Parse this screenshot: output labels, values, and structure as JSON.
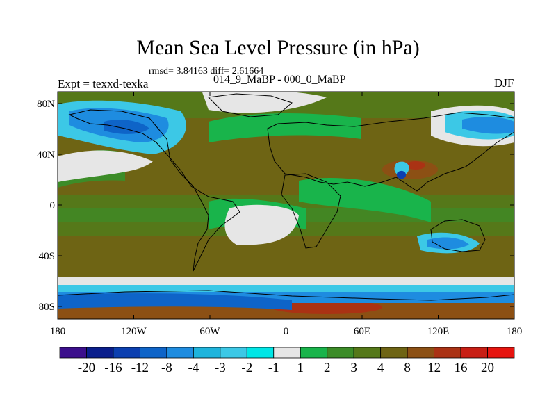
{
  "header": {
    "title": "Mean Sea Level Pressure (in hPa)",
    "stats": "rmsd= 3.84163 diff= 2.61664",
    "experiment": "Expt = texxd-texka",
    "comparison": "014_9_MaBP - 000_0_MaBP",
    "season": "DJF"
  },
  "map": {
    "x_ticks": [
      "180",
      "120W",
      "60W",
      "0",
      "60E",
      "120E",
      "180"
    ],
    "y_ticks": [
      "80N",
      "40N",
      "0",
      "40S",
      "80S"
    ]
  },
  "colorbar": {
    "labels": [
      "-20",
      "-16",
      "-12",
      "-8",
      "-4",
      "-3",
      "-2",
      "-1",
      "1",
      "2",
      "3",
      "4",
      "8",
      "12",
      "16",
      "20"
    ],
    "colors": [
      "#3c0f8c",
      "#0a1e8c",
      "#0b3fb0",
      "#0e64c8",
      "#1e8ce0",
      "#1eb4dc",
      "#3cc8e6",
      "#00e6e6",
      "#e6e6e6",
      "#19b44b",
      "#3c8c28",
      "#557819",
      "#6e6414",
      "#8c5014",
      "#aa3214",
      "#c81e14",
      "#e6140f"
    ]
  }
}
